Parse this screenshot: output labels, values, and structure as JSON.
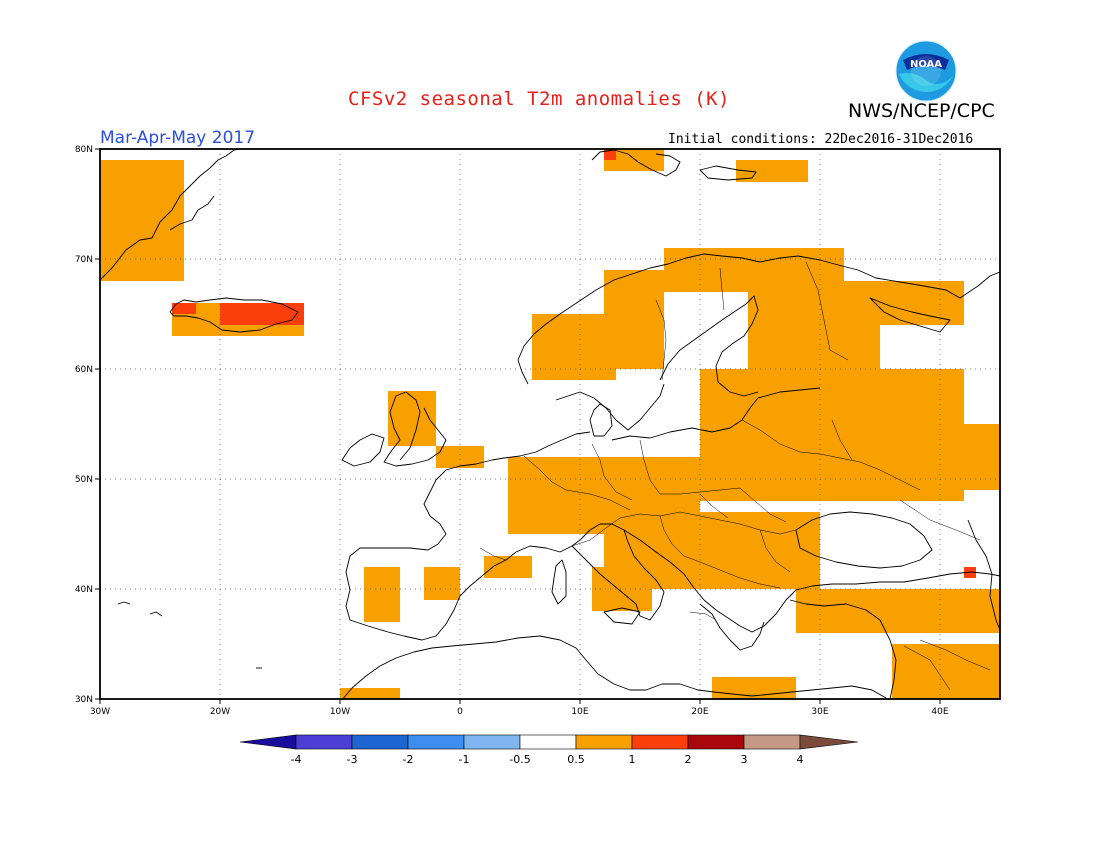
{
  "title": "CFSv2 seasonal T2m anomalies (K)",
  "agency": "NWS/NCEP/CPC",
  "logo_text": "NOAA",
  "season": "Mar-Apr-May 2017",
  "initial_conditions": "Initial conditions: 22Dec2016-31Dec2016",
  "axes": {
    "lon_labels": [
      "30W",
      "20W",
      "10W",
      "0",
      "10E",
      "20E",
      "30E",
      "40E"
    ],
    "lat_labels": [
      "80N",
      "70N",
      "60N",
      "50N",
      "40N",
      "30N"
    ],
    "lon_range": [
      -30,
      45
    ],
    "lat_range": [
      30,
      80
    ],
    "grid": "dotted"
  },
  "colorbar": {
    "labels": [
      "-4",
      "-3",
      "-2",
      "-1",
      "-0.5",
      "0.5",
      "1",
      "2",
      "3",
      "4"
    ],
    "colors": [
      "#1a0c9c",
      "#4b3fd6",
      "#1e66d2",
      "#3d8ef0",
      "#7fb6f2",
      "#ffffff",
      "#f7a000",
      "#fb3f0c",
      "#a8080c",
      "#c49a86",
      "#7a4a3a"
    ]
  },
  "colors": {
    "positive_1": "#f7a000",
    "positive_2": "#fb3f0c",
    "title_red": "#e8201a",
    "season_blue": "#2b4fe0"
  },
  "chart_data": {
    "type": "heatmap",
    "title": "CFSv2 seasonal T2m anomalies (K)",
    "variable": "T2m anomaly",
    "units": "K",
    "period": "Mar-Apr-May 2017",
    "initial_conditions": "22Dec2016-31Dec2016",
    "xlim": [
      -30,
      45
    ],
    "ylim": [
      30,
      80
    ],
    "levels": [
      -4,
      -3,
      -2,
      -1,
      -0.5,
      0.5,
      1,
      2,
      3,
      4
    ],
    "regions_0_5_to_1": [
      {
        "lon": [
          -30,
          -23
        ],
        "lat": [
          68,
          79
        ]
      },
      {
        "lon": [
          -24,
          -13
        ],
        "lat": [
          63,
          66
        ]
      },
      {
        "lon": [
          12,
          17
        ],
        "lat": [
          78,
          80
        ]
      },
      {
        "lon": [
          23,
          29
        ],
        "lat": [
          77,
          79
        ]
      },
      {
        "lon": [
          6,
          13
        ],
        "lat": [
          59,
          65
        ]
      },
      {
        "lon": [
          12,
          17
        ],
        "lat": [
          60,
          69
        ]
      },
      {
        "lon": [
          17,
          32
        ],
        "lat": [
          67,
          71
        ]
      },
      {
        "lon": [
          24,
          35
        ],
        "lat": [
          57,
          68
        ]
      },
      {
        "lon": [
          34,
          42
        ],
        "lat": [
          64,
          68
        ]
      },
      {
        "lon": [
          -6,
          -2
        ],
        "lat": [
          53,
          58
        ]
      },
      {
        "lon": [
          -2,
          2
        ],
        "lat": [
          51,
          53
        ]
      },
      {
        "lon": [
          4,
          20
        ],
        "lat": [
          45,
          52
        ]
      },
      {
        "lon": [
          20,
          42
        ],
        "lat": [
          48,
          60
        ]
      },
      {
        "lon": [
          36,
          45
        ],
        "lat": [
          49,
          55
        ]
      },
      {
        "lon": [
          12,
          30
        ],
        "lat": [
          40,
          47
        ]
      },
      {
        "lon": [
          28,
          45
        ],
        "lat": [
          36,
          40
        ]
      },
      {
        "lon": [
          36,
          45
        ],
        "lat": [
          30,
          35
        ]
      },
      {
        "lon": [
          -8,
          -5
        ],
        "lat": [
          37,
          42
        ]
      },
      {
        "lon": [
          -3,
          0
        ],
        "lat": [
          39,
          42
        ]
      },
      {
        "lon": [
          2,
          6
        ],
        "lat": [
          41,
          43
        ]
      },
      {
        "lon": [
          11,
          16
        ],
        "lat": [
          38,
          42
        ]
      },
      {
        "lon": [
          -10,
          -5
        ],
        "lat": [
          30,
          31
        ]
      },
      {
        "lon": [
          21,
          28
        ],
        "lat": [
          30,
          32
        ]
      }
    ],
    "regions_1_to_2": [
      {
        "lon": [
          -24,
          -22
        ],
        "lat": [
          65,
          66
        ]
      },
      {
        "lon": [
          -20,
          -13
        ],
        "lat": [
          64,
          66
        ]
      },
      {
        "lon": [
          12,
          13
        ],
        "lat": [
          79,
          80
        ]
      },
      {
        "lon": [
          42,
          43
        ],
        "lat": [
          41,
          42
        ]
      }
    ]
  }
}
